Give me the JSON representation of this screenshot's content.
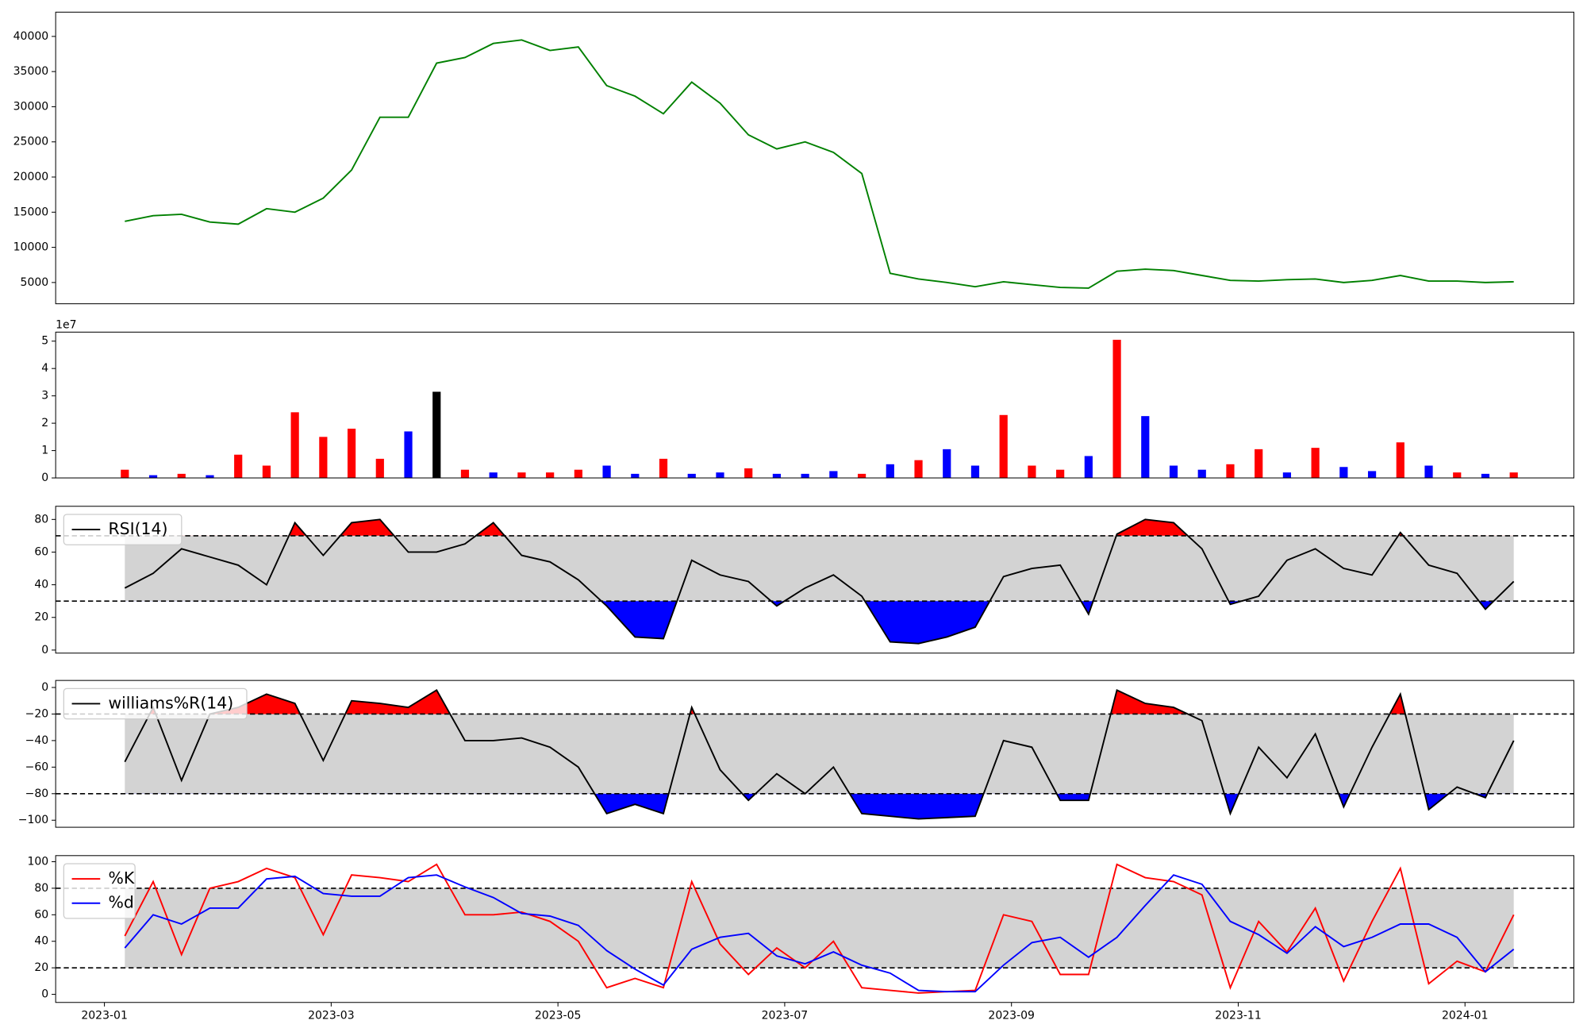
{
  "chart_data": [
    {
      "type": "line",
      "x": [
        0.18,
        0.43,
        0.68,
        0.93,
        1.18,
        1.43,
        1.68,
        1.93,
        2.18,
        2.43,
        2.68,
        2.93,
        3.18,
        3.43,
        3.68,
        3.93,
        4.18,
        4.43,
        4.68,
        4.93,
        5.18,
        5.43,
        5.68,
        5.93,
        6.18,
        6.43,
        6.68,
        6.93,
        7.18,
        7.43,
        7.68,
        7.93,
        8.18,
        8.43,
        8.68,
        8.93,
        9.18,
        9.43,
        9.68,
        9.93,
        10.18,
        10.43,
        10.68,
        10.93,
        11.18,
        11.43,
        11.68,
        11.93,
        12.18,
        12.43
      ],
      "xlim": [
        -0.43,
        12.96
      ],
      "ylim": [
        1975,
        43450
      ],
      "yticks": [
        5000,
        10000,
        15000,
        20000,
        25000,
        30000,
        35000,
        40000
      ],
      "series": [
        {
          "color": "#008000",
          "values": [
            13700,
            14500,
            14700,
            13600,
            13300,
            15500,
            15000,
            17000,
            21000,
            28500,
            28500,
            36200,
            37000,
            39000,
            39500,
            38000,
            38500,
            33000,
            31500,
            29000,
            33500,
            30500,
            26000,
            24000,
            25000,
            23500,
            20500,
            6300,
            5500,
            5000,
            4400,
            5100,
            4700,
            4300,
            4200,
            6600,
            6900,
            6700,
            6000,
            5300,
            5200,
            5400,
            5500,
            5000,
            5300,
            6000,
            5200,
            5200,
            5000,
            5100
          ]
        }
      ]
    },
    {
      "type": "bar",
      "x": [
        0.18,
        0.43,
        0.68,
        0.93,
        1.18,
        1.43,
        1.68,
        1.93,
        2.18,
        2.43,
        2.68,
        2.93,
        3.18,
        3.43,
        3.68,
        3.93,
        4.18,
        4.43,
        4.68,
        4.93,
        5.18,
        5.43,
        5.68,
        5.93,
        6.18,
        6.43,
        6.68,
        6.93,
        7.18,
        7.43,
        7.68,
        7.93,
        8.18,
        8.43,
        8.68,
        8.93,
        9.18,
        9.43,
        9.68,
        9.93,
        10.18,
        10.43,
        10.68,
        10.93,
        11.18,
        11.43,
        11.68,
        11.93,
        12.18,
        12.43
      ],
      "xlim": [
        -0.43,
        12.96
      ],
      "ylim": [
        0,
        53300000
      ],
      "offset_label": "1e7",
      "yticks": [
        {
          "value": 0,
          "label": "0"
        },
        {
          "value": 10000000,
          "label": "1"
        },
        {
          "value": 20000000,
          "label": "2"
        },
        {
          "value": 30000000,
          "label": "3"
        },
        {
          "value": 40000000,
          "label": "4"
        },
        {
          "value": 50000000,
          "label": "5"
        }
      ],
      "values": [
        3000000,
        1000000,
        1500000,
        1000000,
        8500000,
        4500000,
        24000000,
        15000000,
        18000000,
        7000000,
        17000000,
        31500000,
        3000000,
        2000000,
        2000000,
        2000000,
        3000000,
        4500000,
        1500000,
        7000000,
        1500000,
        2000000,
        3500000,
        1500000,
        1500000,
        2500000,
        1500000,
        5000000,
        6500000,
        10500000,
        4500000,
        23000000,
        4500000,
        3000000,
        8000000,
        50500000,
        22600000,
        4500000,
        3000000,
        5000000,
        10500000,
        2000000,
        11000000,
        4000000,
        2500000,
        13000000,
        4500000,
        2000000,
        1500000,
        2000000
      ],
      "colors": [
        "red",
        "blue",
        "red",
        "blue",
        "red",
        "red",
        "red",
        "red",
        "red",
        "red",
        "blue",
        "black",
        "red",
        "blue",
        "red",
        "red",
        "red",
        "blue",
        "blue",
        "red",
        "blue",
        "blue",
        "red",
        "blue",
        "blue",
        "blue",
        "red",
        "blue",
        "red",
        "blue",
        "blue",
        "red",
        "red",
        "red",
        "blue",
        "red",
        "blue",
        "blue",
        "blue",
        "red",
        "red",
        "blue",
        "red",
        "blue",
        "blue",
        "red",
        "blue",
        "red",
        "blue",
        "red"
      ]
    },
    {
      "type": "oscillator",
      "x": [
        0.18,
        0.43,
        0.68,
        0.93,
        1.18,
        1.43,
        1.68,
        1.93,
        2.18,
        2.43,
        2.68,
        2.93,
        3.18,
        3.43,
        3.68,
        3.93,
        4.18,
        4.43,
        4.68,
        4.93,
        5.18,
        5.43,
        5.68,
        5.93,
        6.18,
        6.43,
        6.68,
        6.93,
        7.18,
        7.43,
        7.68,
        7.93,
        8.18,
        8.43,
        8.68,
        8.93,
        9.18,
        9.43,
        9.68,
        9.93,
        10.18,
        10.43,
        10.68,
        10.93,
        11.18,
        11.43,
        11.68,
        11.93,
        12.18,
        12.43
      ],
      "xlim": [
        -0.43,
        12.96
      ],
      "ylim": [
        -1.86,
        88.06
      ],
      "yticks": [
        0,
        20,
        40,
        60,
        80
      ],
      "upper": 70,
      "lower": 30,
      "band_color": "#d3d3d3",
      "over_color": "red",
      "under_color": "blue",
      "fill_extremes": true,
      "legend": "upper left",
      "series": [
        {
          "name": "RSI(14)",
          "color": "black",
          "values": [
            38,
            47,
            62,
            57,
            52,
            40,
            78,
            58,
            78,
            80,
            60,
            60,
            65,
            78,
            58,
            54,
            43,
            27,
            8,
            7,
            55,
            46,
            42,
            27,
            38,
            46,
            33,
            5,
            4,
            8,
            14,
            45,
            50,
            52,
            22,
            71,
            80,
            78,
            62,
            28,
            33,
            55,
            62,
            50,
            46,
            72,
            52,
            47,
            25,
            42
          ]
        }
      ]
    },
    {
      "type": "oscillator",
      "x": [
        0.18,
        0.43,
        0.68,
        0.93,
        1.18,
        1.43,
        1.68,
        1.93,
        2.18,
        2.43,
        2.68,
        2.93,
        3.18,
        3.43,
        3.68,
        3.93,
        4.18,
        4.43,
        4.68,
        4.93,
        5.18,
        5.43,
        5.68,
        5.93,
        6.18,
        6.43,
        6.68,
        6.93,
        7.18,
        7.43,
        7.68,
        7.93,
        8.18,
        8.43,
        8.68,
        8.93,
        9.18,
        9.43,
        9.68,
        9.93,
        10.18,
        10.43,
        10.68,
        10.93,
        11.18,
        11.43,
        11.68,
        11.93,
        12.18,
        12.43
      ],
      "xlim": [
        -0.43,
        12.96
      ],
      "ylim": [
        -105.3,
        5.3
      ],
      "yticks": [
        0,
        {
          "value": -20,
          "label": "−20"
        },
        {
          "value": -40,
          "label": "−40"
        },
        {
          "value": -60,
          "label": "−60"
        },
        {
          "value": -80,
          "label": "−80"
        },
        {
          "value": -100,
          "label": "−100"
        }
      ],
      "upper": -20,
      "lower": -80,
      "band_color": "#d3d3d3",
      "over_color": "red",
      "under_color": "blue",
      "fill_extremes": true,
      "legend": "upper left",
      "series": [
        {
          "name": "williams%R(14)",
          "color": "black",
          "values": [
            -56,
            -15,
            -70,
            -20,
            -15,
            -5,
            -12,
            -55,
            -10,
            -12,
            -15,
            -2,
            -40,
            -40,
            -38,
            -45,
            -60,
            -95,
            -88,
            -95,
            -15,
            -62,
            -85,
            -65,
            -80,
            -60,
            -95,
            -97,
            -99,
            -98,
            -97,
            -40,
            -45,
            -85,
            -85,
            -2,
            -12,
            -15,
            -25,
            -95,
            -45,
            -68,
            -35,
            -90,
            -45,
            -5,
            -92,
            -75,
            -83,
            -40
          ]
        }
      ]
    },
    {
      "type": "oscillator",
      "x": [
        0.18,
        0.43,
        0.68,
        0.93,
        1.18,
        1.43,
        1.68,
        1.93,
        2.18,
        2.43,
        2.68,
        2.93,
        3.18,
        3.43,
        3.68,
        3.93,
        4.18,
        4.43,
        4.68,
        4.93,
        5.18,
        5.43,
        5.68,
        5.93,
        6.18,
        6.43,
        6.68,
        6.93,
        7.18,
        7.43,
        7.68,
        7.93,
        8.18,
        8.43,
        8.68,
        8.93,
        9.18,
        9.43,
        9.68,
        9.93,
        10.18,
        10.43,
        10.68,
        10.93,
        11.18,
        11.43,
        11.68,
        11.93,
        12.18,
        12.43
      ],
      "xlim": [
        -0.43,
        12.96
      ],
      "ylim": [
        -6.1,
        104.6
      ],
      "yticks": [
        0,
        20,
        40,
        60,
        80,
        100
      ],
      "xticks": [
        {
          "value": 0,
          "label": "2023-01"
        },
        {
          "value": 2,
          "label": "2023-03"
        },
        {
          "value": 4,
          "label": "2023-05"
        },
        {
          "value": 6,
          "label": "2023-07"
        },
        {
          "value": 8,
          "label": "2023-09"
        },
        {
          "value": 10,
          "label": "2023-11"
        },
        {
          "value": 12,
          "label": "2024-01"
        }
      ],
      "upper": 80,
      "lower": 20,
      "band_color": "#d3d3d3",
      "fill_extremes": false,
      "legend": "upper left",
      "series": [
        {
          "name": "%K",
          "color": "red",
          "values": [
            44,
            85,
            30,
            80,
            85,
            95,
            88,
            45,
            90,
            88,
            85,
            98,
            60,
            60,
            62,
            55,
            40,
            5,
            12,
            5,
            85,
            38,
            15,
            35,
            20,
            40,
            5,
            3,
            1,
            2,
            3,
            60,
            55,
            15,
            15,
            98,
            88,
            85,
            75,
            5,
            55,
            32,
            65,
            10,
            55,
            95,
            8,
            25,
            17,
            60
          ]
        },
        {
          "name": "%d",
          "color": "blue",
          "values": [
            35,
            60,
            53,
            65,
            65,
            87,
            89,
            76,
            74,
            74,
            88,
            90,
            81,
            73,
            61,
            59,
            52,
            33,
            19,
            7,
            34,
            43,
            46,
            29,
            23,
            32,
            22,
            16,
            3,
            2,
            2,
            22,
            39,
            43,
            28,
            43,
            67,
            90,
            83,
            55,
            45,
            31,
            51,
            36,
            43,
            53,
            53,
            43,
            17,
            34
          ]
        }
      ]
    }
  ]
}
